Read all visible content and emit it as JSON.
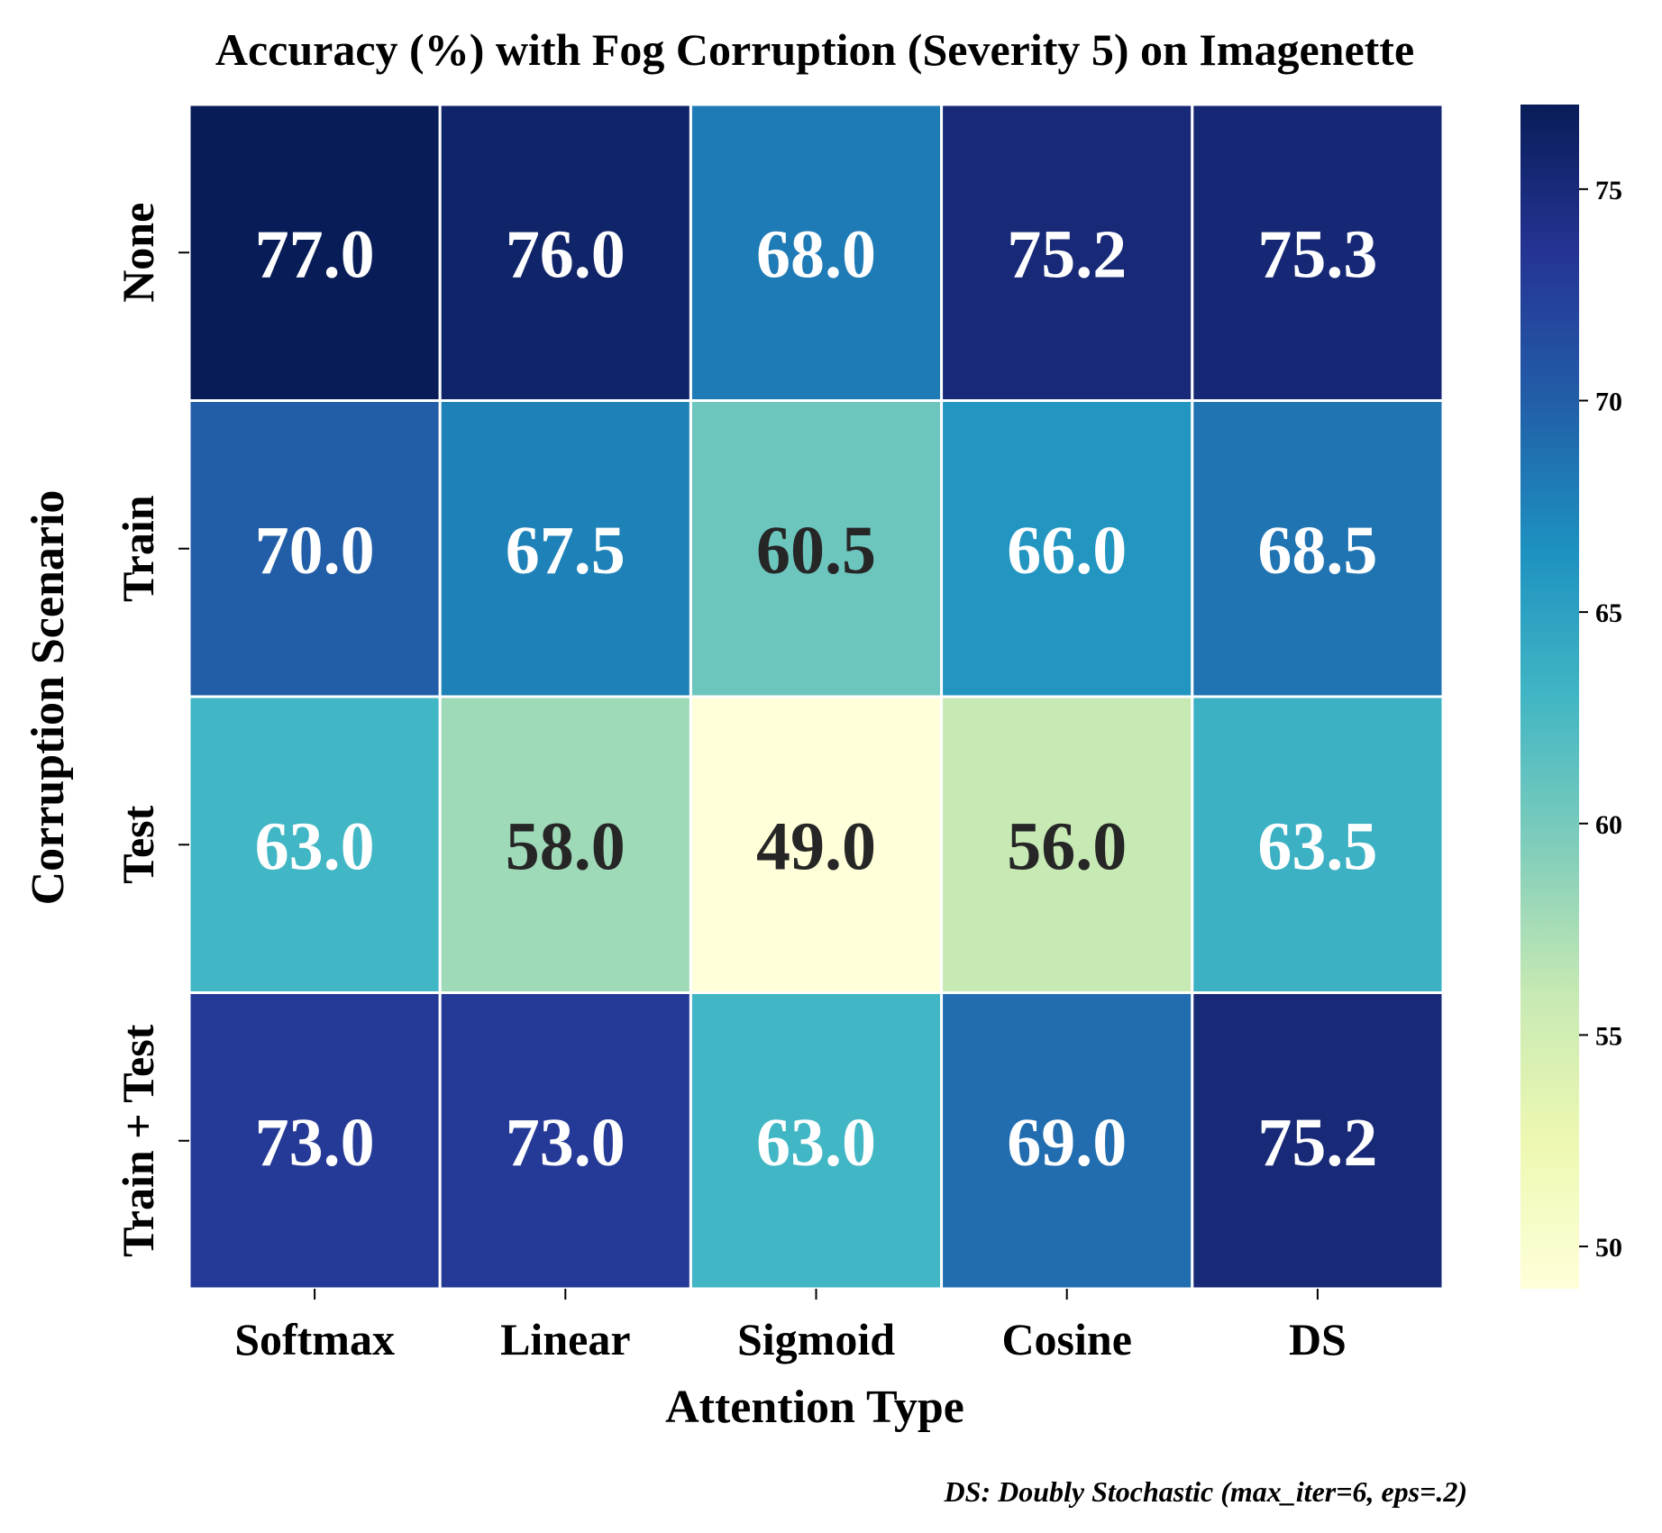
{
  "chart_data": {
    "type": "heatmap",
    "title": "Accuracy (%) with Fog Corruption (Severity 5) on Imagenette",
    "xlabel": "Attention Type",
    "ylabel": "Corruption Scenario",
    "x_categories": [
      "Softmax",
      "Linear",
      "Sigmoid",
      "Cosine",
      "DS"
    ],
    "y_categories": [
      "None",
      "Train",
      "Test",
      "Train + Test"
    ],
    "values": [
      [
        77.0,
        76.0,
        68.0,
        75.2,
        75.3
      ],
      [
        70.0,
        67.5,
        60.5,
        66.0,
        68.5
      ],
      [
        63.0,
        58.0,
        49.0,
        56.0,
        63.5
      ],
      [
        73.0,
        73.0,
        63.0,
        69.0,
        75.2
      ]
    ],
    "value_format": "0.1f",
    "colormap": "YlGnBu",
    "vmin": 49.0,
    "vmax": 77.0,
    "colorbar_ticks": [
      50,
      55,
      60,
      65,
      70,
      75
    ],
    "colors": {
      "ramp": [
        "#ffffd9",
        "#edf8b1",
        "#c7e9b4",
        "#7fcdbb",
        "#41b6c4",
        "#1d91c0",
        "#225ea8",
        "#253494",
        "#081d58"
      ],
      "cell_border": "#ffffff",
      "dark_text": "#262626",
      "light_text": "#ffffff"
    },
    "note": "DS: Doubly Stochastic (max_iter=6, eps=.2)"
  }
}
